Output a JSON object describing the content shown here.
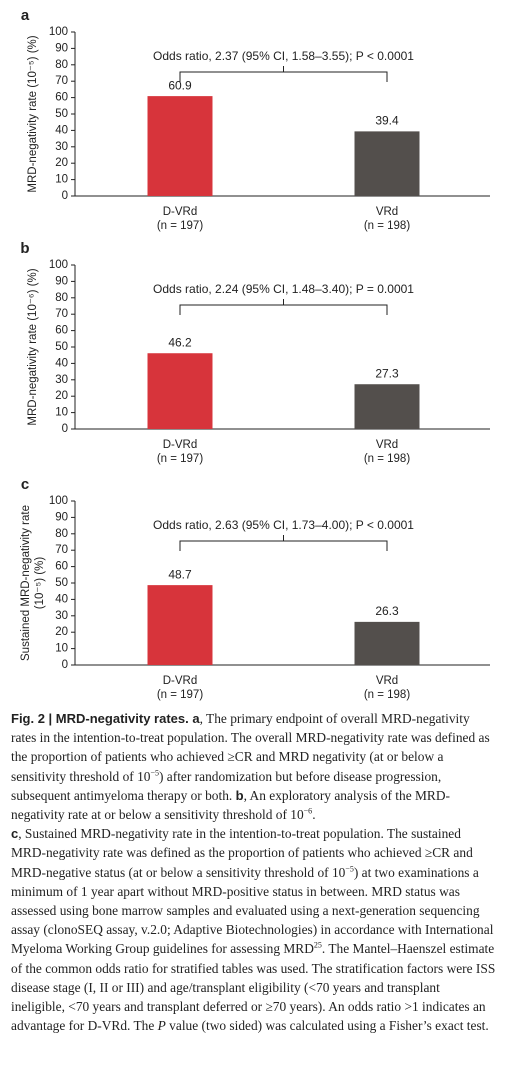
{
  "chart_data": [
    {
      "type": "bar",
      "panel": "a",
      "ylabel": [
        "MRD-negativity rate (10⁻⁵) (%)"
      ],
      "categories": [
        "D-VRd",
        "VRd"
      ],
      "category_sublabels": [
        "(n = 197)",
        "(n = 198)"
      ],
      "values": [
        60.9,
        39.4
      ],
      "colors": [
        "#d7343b",
        "#534f4c"
      ],
      "annotation": "Odds ratio, 2.37 (95% CI, 1.58–3.55); P < 0.0001",
      "ylim": [
        0,
        100
      ],
      "yticks": [
        0,
        10,
        20,
        30,
        40,
        50,
        60,
        70,
        80,
        90,
        100
      ]
    },
    {
      "type": "bar",
      "panel": "b",
      "ylabel": [
        "MRD-negativity rate (10⁻⁶) (%)"
      ],
      "categories": [
        "D-VRd",
        "VRd"
      ],
      "category_sublabels": [
        "(n = 197)",
        "(n = 198)"
      ],
      "values": [
        46.2,
        27.3
      ],
      "colors": [
        "#d7343b",
        "#534f4c"
      ],
      "annotation": "Odds ratio, 2.24 (95% CI, 1.48–3.40); P = 0.0001",
      "ylim": [
        0,
        100
      ],
      "yticks": [
        0,
        10,
        20,
        30,
        40,
        50,
        60,
        70,
        80,
        90,
        100
      ]
    },
    {
      "type": "bar",
      "panel": "c",
      "ylabel": [
        "Sustained MRD-negativity rate",
        "(10⁻⁵) (%)"
      ],
      "categories": [
        "D-VRd",
        "VRd"
      ],
      "category_sublabels": [
        "(n = 197)",
        "(n = 198)"
      ],
      "values": [
        48.7,
        26.3
      ],
      "colors": [
        "#d7343b",
        "#534f4c"
      ],
      "annotation": "Odds ratio, 2.63 (95% CI, 1.73–4.00); P < 0.0001",
      "ylim": [
        0,
        100
      ],
      "yticks": [
        0,
        10,
        20,
        30,
        40,
        50,
        60,
        70,
        80,
        90,
        100
      ]
    }
  ],
  "caption": [
    "Fig. 2 | MRD-negativity rates. a",
    ", The primary endpoint of overall MRD-negativity rates in the intention-to-treat population. The overall MRD-negativity rate was defined as the proportion of patients who achieved ≥CR and MRD negativity (at or below a sensitivity threshold of 10",
    "−5",
    ") after randomization but before disease progression, subsequent antimyeloma therapy or both. ",
    "b",
    ", An exploratory analysis of the MRD-negativity rate at or below a sensitivity threshold of 10",
    "−6",
    ". ",
    "c",
    ", Sustained MRD-negativity rate in the intention-to-treat population. The sustained MRD-negativity rate was defined as the proportion of patients who achieved ≥CR and MRD-negative status (at or below a sensitivity threshold of 10",
    "−5",
    ") at two examinations a minimum of 1 year apart without MRD-positive status in between. MRD status was assessed using bone marrow samples and evaluated using a next-generation sequencing assay (clonoSEQ assay, v.2.0; Adaptive Biotechnologies) in accordance with International Myeloma Working Group guidelines for assessing MRD",
    "25",
    ". The Mantel–Haenszel estimate of the common odds ratio for stratified tables was used. The stratification factors were ISS disease stage (I, II or III) and age/transplant eligibility (<70 years and transplant ineligible, <70 years and transplant deferred or ≥70 years). An odds ratio >1 indicates an advantage for D-VRd. The ",
    "P",
    " value (two sided) was calculated using a Fisher’s exact test."
  ]
}
